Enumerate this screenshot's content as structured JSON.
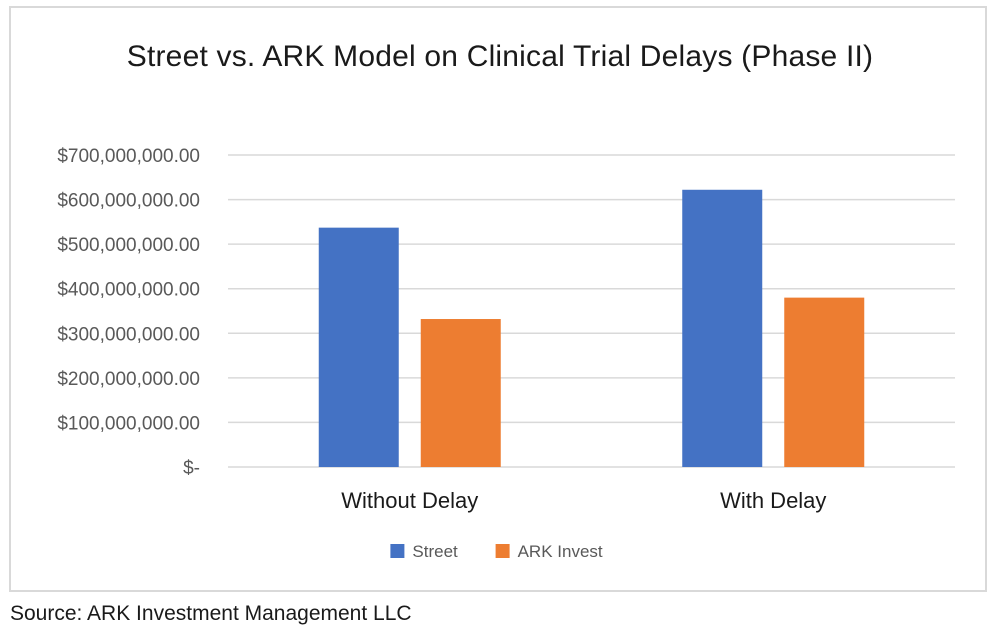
{
  "chart_data": {
    "type": "bar",
    "title": "Street vs. ARK Model on Clinical Trial Delays (Phase II)",
    "categories": [
      "Without Delay",
      "With Delay"
    ],
    "series": [
      {
        "name": "Street",
        "color": "#4472C4",
        "values": [
          537000000,
          622000000
        ]
      },
      {
        "name": "ARK Invest",
        "color": "#ED7D31",
        "values": [
          332000000,
          380000000
        ]
      }
    ],
    "ylim": [
      0,
      700000000
    ],
    "yticks": [
      0,
      100000000,
      200000000,
      300000000,
      400000000,
      500000000,
      600000000,
      700000000
    ],
    "ytick_labels": [
      "$-",
      "$100,000,000.00",
      "$200,000,000.00",
      "$300,000,000.00",
      "$400,000,000.00",
      "$500,000,000.00",
      "$600,000,000.00",
      "$700,000,000.00"
    ],
    "xlabel": "",
    "ylabel": "",
    "grid": true,
    "legend": "bottom-center",
    "gridline_color": "#d9d9d9"
  },
  "source": "Source: ARK Investment Management LLC"
}
